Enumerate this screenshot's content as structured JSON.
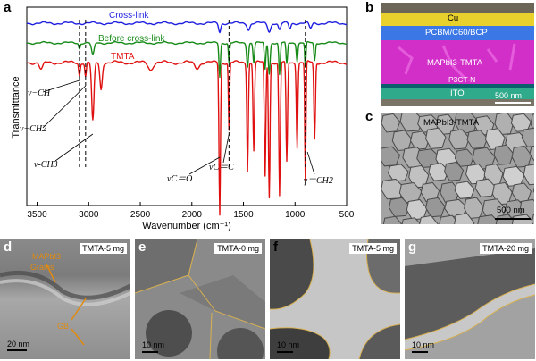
{
  "panels": {
    "a": {
      "label": "a",
      "ylabel": "Transmittance",
      "xlabel": "Wavenumber (cm⁻¹)",
      "xticks": [
        "3500",
        "3000",
        "2500",
        "2000",
        "1500",
        "1000",
        "500"
      ],
      "series_labels": {
        "crosslink": "Cross-link",
        "before": "Before cross-link",
        "tmta": "TMTA"
      },
      "annotations": {
        "ch": "ν−CH",
        "ch2": "ν−CH2",
        "ch3": "ν-CH3",
        "co": "νC＝O",
        "cc": "νC＝C",
        "gch2": "γ＝CH2"
      }
    },
    "b": {
      "label": "b",
      "layers": [
        "Cu",
        "PCBM/C60/BCP",
        "MAPbI3-TMTA",
        "P3CT-N",
        "ITO"
      ],
      "scale": "500 nm"
    },
    "c": {
      "label": "c",
      "title": "MAPbI3-TMTA",
      "scale": "500 nm"
    },
    "d": {
      "label": "d",
      "tag": "TMTA-5 mg",
      "annot_line1": "MAPbI3",
      "annot_line2": "Grains",
      "annot_gb": "GB",
      "scale": "20 nm"
    },
    "e": {
      "label": "e",
      "tag": "TMTA-0 mg",
      "scale": "10 nm"
    },
    "f": {
      "label": "f",
      "tag": "TMTA-5 mg",
      "scale": "10 nm"
    },
    "g": {
      "label": "g",
      "tag": "TMTA-20 mg",
      "scale": "10 nm"
    }
  },
  "colors": {
    "crosslink": "#1f1fe0",
    "before": "#168a16",
    "tmta": "#e01010",
    "cu": "#e8d12c",
    "pcbm": "#3b78e6",
    "perovskite": "#d22fc8",
    "p3ctn": "#0b5e6b",
    "ito": "#2faa8a",
    "gb_line": "#e0b040",
    "annot": "#e08a10"
  },
  "chart_data": {
    "type": "line",
    "xlabel": "Wavenumber (cm⁻¹)",
    "ylabel": "Transmittance",
    "xlim": [
      3600,
      500
    ],
    "x_reversed": true,
    "series": [
      {
        "name": "Cross-link"
      },
      {
        "name": "Before cross-link"
      },
      {
        "name": "TMTA"
      }
    ],
    "peak_markers_cm1": [
      3090,
      3030,
      1640,
      900
    ],
    "annotated_peaks": [
      {
        "label": "ν−CH",
        "x": 3090
      },
      {
        "label": "ν−CH2",
        "x": 3030
      },
      {
        "label": "ν-CH3",
        "x": 2960
      },
      {
        "label": "νC＝O",
        "x": 1730
      },
      {
        "label": "νC＝C",
        "x": 1640
      },
      {
        "label": "γ＝CH2",
        "x": 880
      }
    ],
    "grid": false
  }
}
